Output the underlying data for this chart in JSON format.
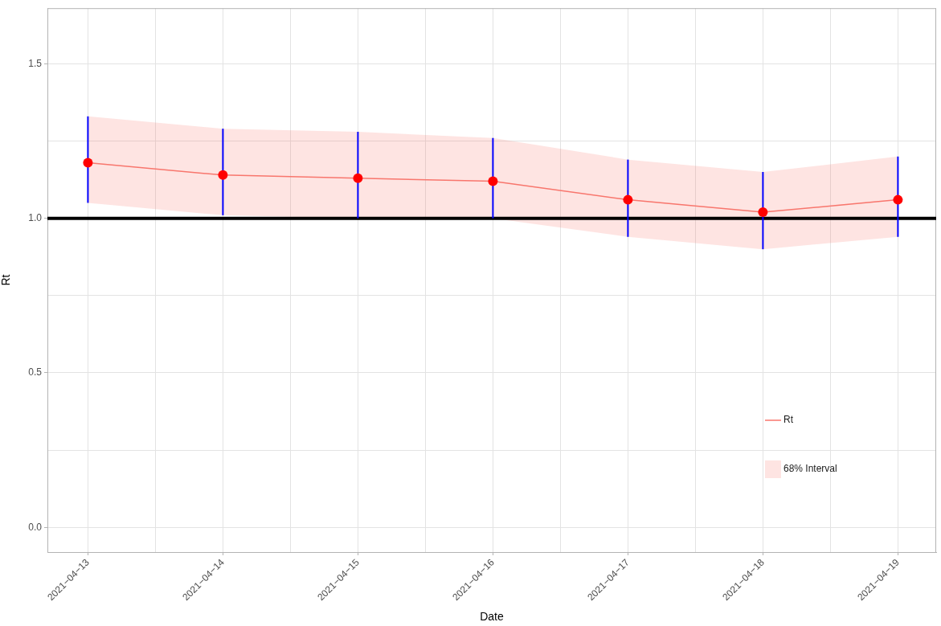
{
  "chart_data": {
    "type": "line",
    "xlabel": "Date",
    "ylabel": "Rt",
    "x": [
      "2021-04-13",
      "2021-04-14",
      "2021-04-15",
      "2021-04-16",
      "2021-04-17",
      "2021-04-18",
      "2021-04-19"
    ],
    "series": [
      {
        "name": "Rt",
        "color": "#f8766d",
        "values": [
          1.18,
          1.14,
          1.13,
          1.12,
          1.06,
          1.02,
          1.06
        ],
        "lower": [
          1.05,
          1.01,
          1.0,
          1.0,
          0.94,
          0.9,
          0.94
        ],
        "upper": [
          1.33,
          1.29,
          1.28,
          1.26,
          1.19,
          1.15,
          1.2
        ]
      },
      {
        "type": "scatter",
        "color": "#0000ff",
        "colors": [
          "#ff0000",
          "#ff0000",
          "#ff0000",
          "#ff0000",
          "#ff0000",
          "#ff0000",
          "#ff0000"
        ],
        "marker": "circle",
        "values": [
          1.18,
          1.14,
          1.13,
          1.12,
          1.06,
          1.02,
          1.06
        ],
        "errors": [
          [
            1.05,
            1.33
          ],
          [
            1.01,
            1.29
          ],
          [
            1.0,
            1.28
          ],
          [
            1.0,
            1.26
          ],
          [
            0.94,
            1.19
          ],
          [
            0.9,
            1.15
          ],
          [
            0.94,
            1.2
          ]
        ]
      }
    ],
    "annotations": [
      "68% Interval"
    ],
    "xlim": [
      "2021-04-12T16:48",
      "2021-04-19T06:48"
    ],
    "xticks": [
      {
        "value": "2021-04-13",
        "label": "2021−04−13"
      },
      {
        "value": "2021-04-13T12:00",
        "label": null
      },
      {
        "value": "2021-04-14",
        "label": "2021−04−14"
      },
      {
        "value": "2021-04-14T12:00",
        "label": null
      },
      {
        "value": "2021-04-15",
        "label": "2021−04−15"
      },
      {
        "value": "2021-04-15T12:00",
        "label": null
      },
      {
        "value": "2021-04-16",
        "label": "2021−04−16"
      },
      {
        "value": "2021-04-16T12:00",
        "label": null
      },
      {
        "value": "2021-04-17",
        "label": "2021−04−17"
      },
      {
        "value": "2021-04-17T12:00",
        "label": null
      },
      {
        "value": "2021-04-18",
        "label": "2021−04−18"
      },
      {
        "value": "2021-04-18T12:00",
        "label": null
      },
      {
        "value": "2021-04-19",
        "label": "2021−04−19"
      }
    ],
    "ylim": [
      -0.08,
      1.68
    ],
    "yticks": [
      {
        "value": 0,
        "label": "0.0"
      },
      {
        "value": 0.25,
        "label": null
      },
      0.5,
      {
        "value": 0.75,
        "label": null
      },
      {
        "value": 1,
        "label": "1.0"
      },
      {
        "value": 1.25,
        "label": null
      },
      1.5
    ],
    "ref_lines": [
      {
        "axis": "y",
        "value": 1,
        "color": "#000000"
      }
    ],
    "grid": true,
    "legend": "bottom right"
  }
}
